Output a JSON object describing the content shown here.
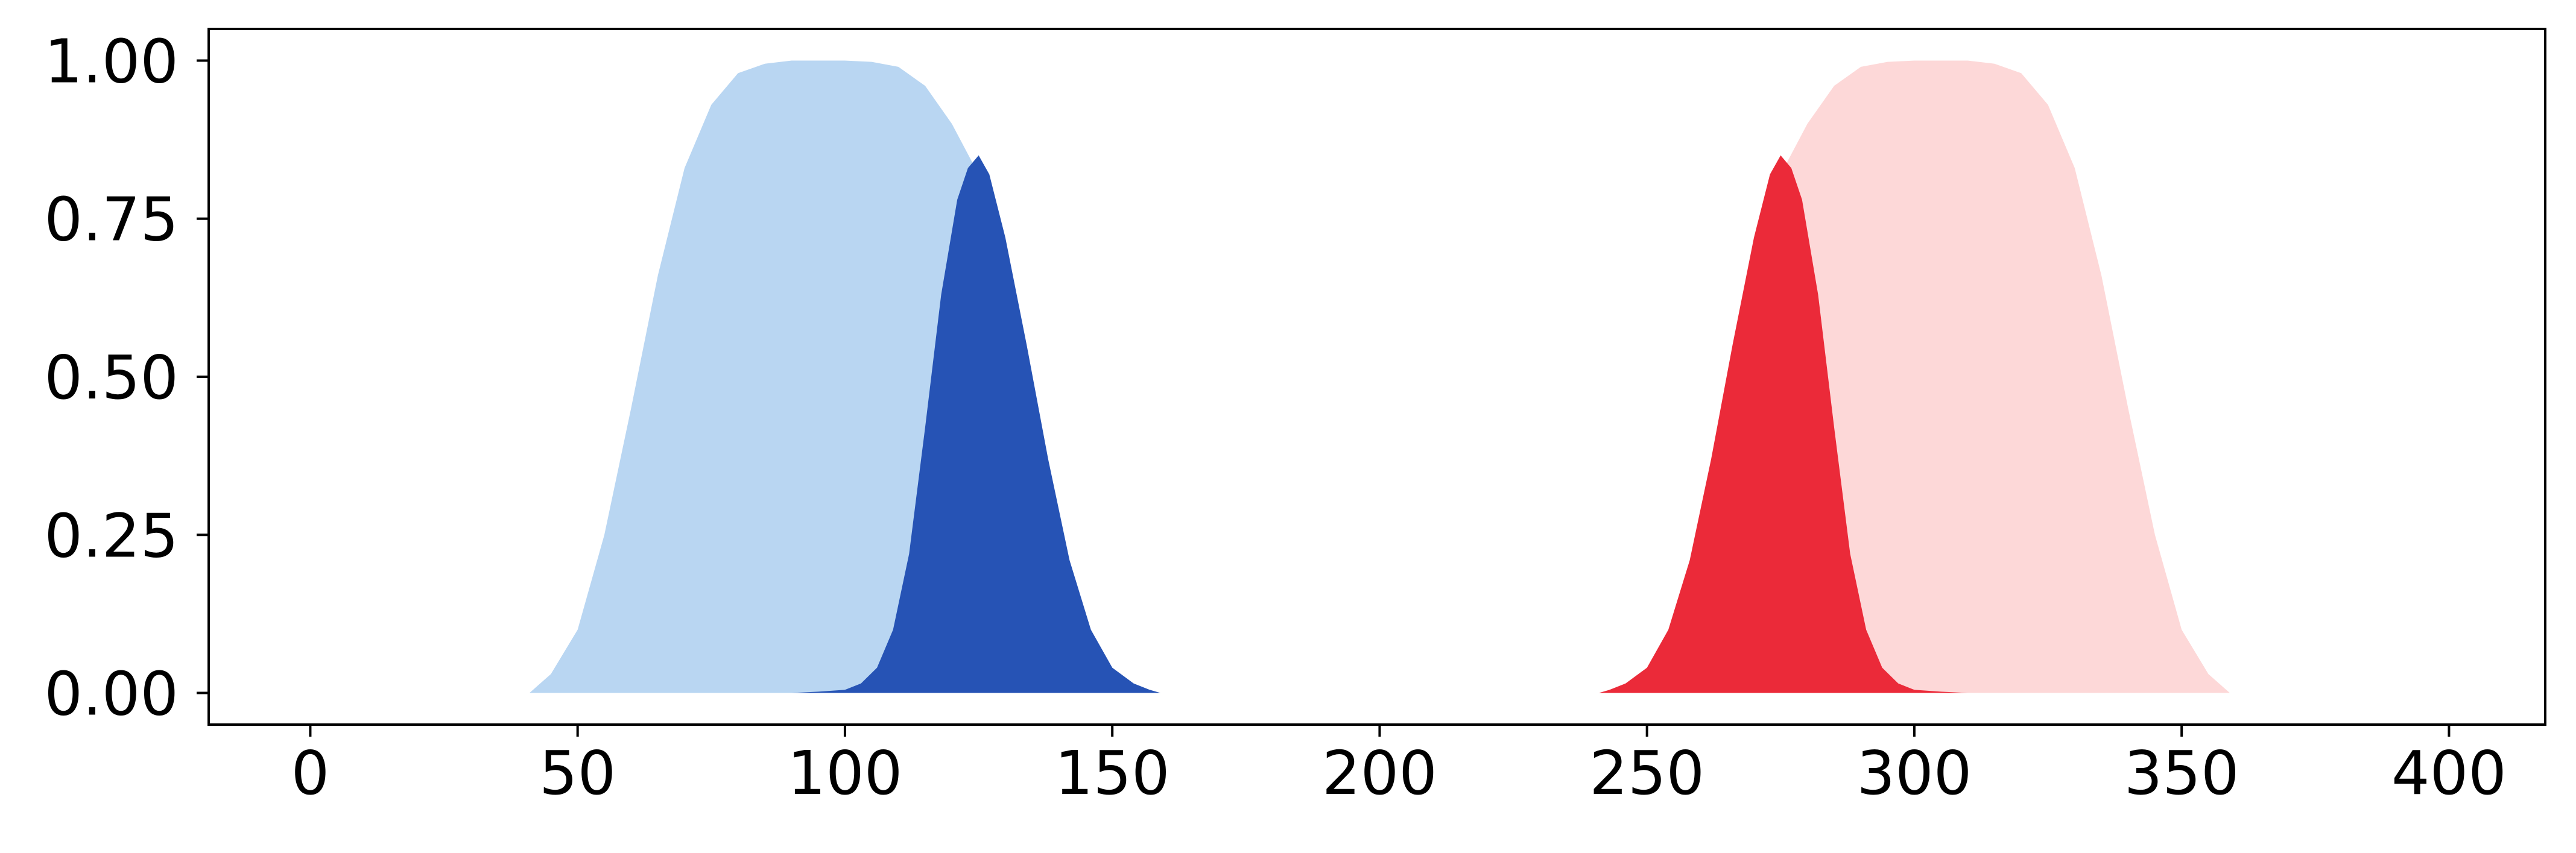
{
  "chart_data": {
    "type": "area",
    "title": "",
    "xlabel": "",
    "ylabel": "",
    "xlim": [
      -19,
      418
    ],
    "ylim": [
      -0.05,
      1.05
    ],
    "grid": false,
    "xticks": [
      0,
      50,
      100,
      150,
      200,
      250,
      300,
      350,
      400
    ],
    "xtick_labels": [
      "0",
      "50",
      "100",
      "150",
      "200",
      "250",
      "300",
      "350",
      "400"
    ],
    "yticks": [
      0.0,
      0.25,
      0.5,
      0.75,
      1.0
    ],
    "ytick_labels": [
      "0.00",
      "0.25",
      "0.50",
      "0.75",
      "1.00"
    ],
    "series": [
      {
        "color": "#b9d6f2",
        "x": [
          41,
          45,
          50,
          55,
          60,
          65,
          70,
          75,
          80,
          85,
          90,
          95,
          100,
          105,
          110,
          115,
          120,
          125,
          129,
          129,
          125,
          120,
          115,
          110,
          105,
          100,
          95,
          90,
          85,
          80,
          75,
          70,
          65,
          60,
          55,
          50,
          45,
          41
        ],
        "y": [
          0.0,
          0.03,
          0.1,
          0.25,
          0.45,
          0.66,
          0.83,
          0.93,
          0.98,
          0.995,
          1.0,
          1.0,
          1.0,
          0.998,
          0.99,
          0.96,
          0.9,
          0.82,
          0.75,
          0.0,
          0.0,
          0.0,
          0.0,
          0.0,
          0.0,
          0.0,
          0.0,
          0.0,
          0.0,
          0.0,
          0.0,
          0.0,
          0.0,
          0.0,
          0.0,
          0.0,
          0.0,
          0.0
        ]
      },
      {
        "color": "#2653b5",
        "x": [
          90,
          95,
          100,
          103,
          106,
          109,
          112,
          115,
          118,
          121,
          123,
          125,
          127,
          130,
          134,
          138,
          142,
          146,
          150,
          154,
          157,
          159,
          159,
          90
        ],
        "y": [
          0.0,
          0.002,
          0.005,
          0.015,
          0.04,
          0.1,
          0.22,
          0.42,
          0.63,
          0.78,
          0.83,
          0.85,
          0.82,
          0.72,
          0.55,
          0.37,
          0.21,
          0.1,
          0.04,
          0.015,
          0.005,
          0.0,
          0.0,
          0.0
        ]
      },
      {
        "color": "#fdd8d8",
        "x": [
          271,
          275,
          280,
          285,
          290,
          295,
          300,
          305,
          310,
          315,
          320,
          325,
          330,
          335,
          340,
          345,
          350,
          355,
          359,
          359,
          350,
          340,
          330,
          320,
          310,
          300,
          290,
          280,
          271
        ],
        "y": [
          0.75,
          0.82,
          0.9,
          0.96,
          0.99,
          0.998,
          1.0,
          1.0,
          1.0,
          0.995,
          0.98,
          0.93,
          0.83,
          0.66,
          0.45,
          0.25,
          0.1,
          0.03,
          0.0,
          0.0,
          0.0,
          0.0,
          0.0,
          0.0,
          0.0,
          0.0,
          0.0,
          0.0,
          0.0
        ]
      },
      {
        "color": "#eb2a39",
        "x": [
          241,
          243,
          246,
          250,
          254,
          258,
          262,
          266,
          270,
          273,
          275,
          277,
          279,
          282,
          285,
          288,
          291,
          294,
          297,
          300,
          305,
          310,
          310,
          241
        ],
        "y": [
          0.0,
          0.005,
          0.015,
          0.04,
          0.1,
          0.21,
          0.37,
          0.55,
          0.72,
          0.82,
          0.85,
          0.83,
          0.78,
          0.63,
          0.42,
          0.22,
          0.1,
          0.04,
          0.015,
          0.005,
          0.002,
          0.0,
          0.0,
          0.0
        ]
      }
    ]
  }
}
